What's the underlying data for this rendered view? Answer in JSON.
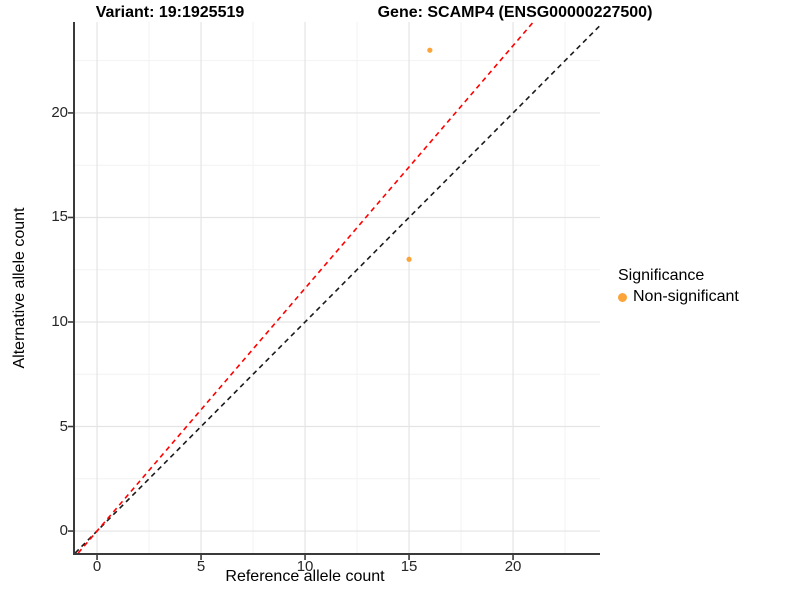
{
  "title": {
    "variant": "Variant: 19:1925519",
    "gene": "Gene: SCAMP4 (ENSG00000227500)"
  },
  "x_axis": {
    "label": "Reference allele count",
    "major_ticks": [
      0,
      5,
      10,
      15,
      20
    ],
    "minor_ticks": [
      2.5,
      7.5,
      12.5,
      17.5,
      22.5
    ]
  },
  "y_axis": {
    "label": "Alternative allele count",
    "major_ticks": [
      0,
      5,
      10,
      15,
      20
    ],
    "minor_ticks": [
      2.5,
      7.5,
      12.5,
      17.5,
      22.5
    ]
  },
  "legend": {
    "title": "Significance",
    "items": [
      {
        "label": "Non-significant",
        "color": "#FAA43A"
      }
    ]
  },
  "colors": {
    "point": "#FAA43A",
    "identity_line": "#1A1A1A",
    "ratio_line": "#FF0000",
    "axis_line": "#3A3A3A",
    "grid_major": "#E4E4E4",
    "grid_minor": "#F2F2F2",
    "tick_label": "#262626"
  },
  "chart_data": {
    "type": "scatter",
    "title_left": "Variant: 19:1925519",
    "title_right": "Gene: SCAMP4 (ENSG00000227500)",
    "xlabel": "Reference allele count",
    "ylabel": "Alternative allele count",
    "xlim": [
      -1.06,
      24.18
    ],
    "ylim": [
      -1.05,
      24.35
    ],
    "grid": "major+minor",
    "legend_position": "right",
    "series": [
      {
        "name": "Non-significant",
        "color": "#FAA43A",
        "points": [
          {
            "x": 15,
            "y": 13
          },
          {
            "x": 16,
            "y": 23
          }
        ]
      }
    ],
    "lines": [
      {
        "name": "identity y=x",
        "slope": 1,
        "intercept": 0,
        "style": "dashed",
        "color": "#1A1A1A"
      },
      {
        "name": "pooled alt/ref ratio 36/31",
        "slope": 1.161,
        "intercept": 0,
        "style": "dashed",
        "color": "#FF0000"
      }
    ]
  }
}
